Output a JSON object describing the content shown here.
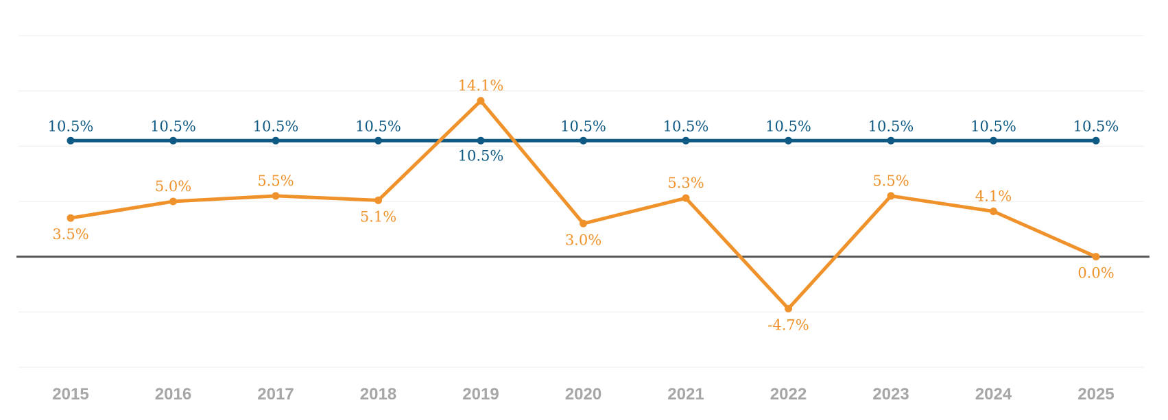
{
  "chart_data": {
    "type": "line",
    "categories": [
      "2015",
      "2016",
      "2017",
      "2018",
      "2019",
      "2020",
      "2021",
      "2022",
      "2023",
      "2024",
      "2025"
    ],
    "series": [
      {
        "color": "#0e5a84",
        "values": [
          10.5,
          10.5,
          10.5,
          10.5,
          10.5,
          10.5,
          10.5,
          10.5,
          10.5,
          10.5,
          10.5
        ],
        "labels": [
          "10.5%",
          "10.5%",
          "10.5%",
          "10.5%",
          "10.5%",
          "10.5%",
          "10.5%",
          "10.5%",
          "10.5%",
          "10.5%",
          "10.5%"
        ]
      },
      {
        "color": "#f0922b",
        "values": [
          3.5,
          5.0,
          5.5,
          5.1,
          14.1,
          3.0,
          5.3,
          -4.7,
          5.5,
          4.1,
          0.0
        ],
        "labels": [
          "3.5%",
          "5.0%",
          "5.5%",
          "5.1%",
          "14.1%",
          "3.0%",
          "5.3%",
          "-4.7%",
          "5.5%",
          "4.1%",
          "0.0%"
        ]
      }
    ],
    "ylim": [
      -10,
      20
    ],
    "yticks": [
      -10,
      -5,
      0,
      5,
      10,
      15,
      20
    ],
    "grid": true,
    "legend": "none",
    "zero_line_color": "#555555",
    "tick_color": "#a6a6a6"
  }
}
